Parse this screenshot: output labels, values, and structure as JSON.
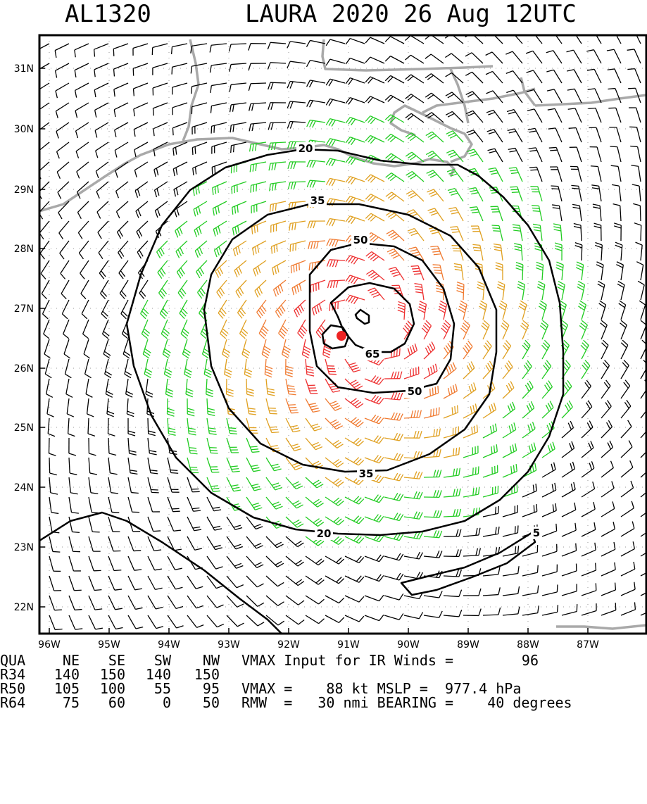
{
  "title": {
    "left": "AL1320",
    "right": "LAURA 2020 26 Aug 12UTC"
  },
  "axes": {
    "lat_labels": [
      "31N",
      "30N",
      "29N",
      "28N",
      "27N",
      "26N",
      "25N",
      "24N",
      "23N",
      "22N"
    ],
    "lon_labels": [
      "96W",
      "95W",
      "94W",
      "93W",
      "92W",
      "91W",
      "90W",
      "89W",
      "88W",
      "87W"
    ]
  },
  "contours": {
    "labels": [
      "5",
      "20",
      "35",
      "50",
      "65"
    ],
    "colors": {
      "black": "#000000",
      "green": "#22cc22",
      "gold": "#e0a020",
      "orange": "#f07a30",
      "red": "#ee3030",
      "coast": "#a9a9a9"
    }
  },
  "center_marker": {
    "color": "#ee2222"
  },
  "footer": {
    "header_row": {
      "label": "QUA",
      "cols": [
        "NE",
        "SE",
        "SW",
        "NW"
      ],
      "text": "VMAX Input for IR Winds =",
      "value": "96"
    },
    "r34": {
      "label": "R34",
      "cols": [
        "140",
        "150",
        "140",
        "150"
      ]
    },
    "r50": {
      "label": "R50",
      "cols": [
        "105",
        "100",
        "55",
        "95"
      ],
      "text": "VMAX =    88 kt MSLP =  977.4 hPa"
    },
    "r64": {
      "label": "R64",
      "cols": [
        "75",
        "60",
        "0",
        "50"
      ],
      "text": "RMW  =   30 nmi BEARING =    40 degrees"
    }
  }
}
